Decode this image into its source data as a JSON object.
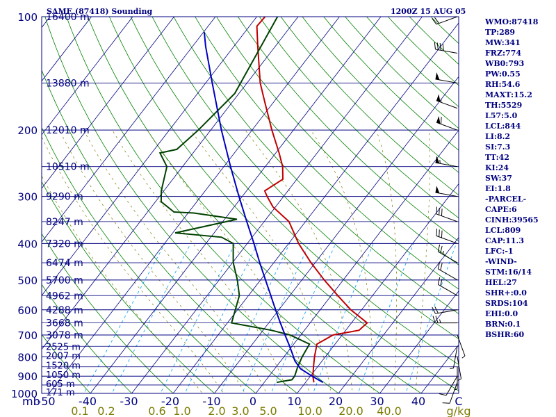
{
  "header": {
    "title": "SAME (87418) Sounding",
    "datetime": "1200Z 15 AUG 05"
  },
  "indices": [
    "WMO:87418",
    "TP:289",
    "MW:341",
    "FRZ:774",
    "WB0:793",
    "PW:0.55",
    "RH:54.6",
    "MAXT:15.2",
    "TH:5529",
    "L57:5.0",
    "LCL:844",
    "LI:8.2",
    "SI:7.3",
    "TT:42",
    "KI:24",
    "SW:37",
    "EI:1.8",
    "-PARCEL-",
    "CAPE:6",
    "CINH:39565",
    "LCL:809",
    "CAP:11.3",
    "LFC:-1",
    "-WIND-",
    "STM:16/14",
    "HEL:27",
    "SHR+:0.0",
    "SRDS:104",
    "EHI:0.0",
    "BRN:0.1",
    "BSHR:60"
  ],
  "colors": {
    "text": "#000080",
    "isobar": "#000080",
    "isotherm": "#000080",
    "dry_adiabat": "#008000",
    "moist_adiabat": "#7a7a00",
    "mixing_ratio": "#00a0ff",
    "temperature": "#c00000",
    "dewpoint": "#004000",
    "parcel": "#0000c0",
    "wind": "#000000"
  },
  "chart_data": {
    "type": "skew-t log-p",
    "title": "SAME (87418) Sounding",
    "xlabel": "C",
    "ylabel": "mb",
    "x_unit": "C",
    "y_unit": "mb",
    "xlim": [
      -50,
      50
    ],
    "ylim": [
      1000,
      100
    ],
    "pressure_ticks": [
      100,
      200,
      300,
      400,
      500,
      600,
      700,
      800,
      900,
      1000
    ],
    "temperature_ticks": [
      -50,
      -40,
      -30,
      -20,
      -10,
      0,
      10,
      20,
      30,
      40
    ],
    "height_labels": [
      {
        "p": 100,
        "text": "16400 m"
      },
      {
        "p": 150,
        "text": "13880 m"
      },
      {
        "p": 200,
        "text": "12010 m"
      },
      {
        "p": 250,
        "text": "10510 m"
      },
      {
        "p": 300,
        "text": "9290 m"
      },
      {
        "p": 350,
        "text": "8247 m"
      },
      {
        "p": 400,
        "text": "7320 m"
      },
      {
        "p": 450,
        "text": "6474 m"
      },
      {
        "p": 500,
        "text": "5700 m"
      },
      {
        "p": 550,
        "text": "4962 m"
      },
      {
        "p": 600,
        "text": "4288 m"
      },
      {
        "p": 650,
        "text": "3668 m"
      },
      {
        "p": 700,
        "text": "3078 m"
      },
      {
        "p": 750,
        "text": "2525 m"
      },
      {
        "p": 800,
        "text": "2007 m"
      },
      {
        "p": 850,
        "text": "1520 m"
      },
      {
        "p": 900,
        "text": "1050 m"
      },
      {
        "p": 950,
        "text": "605 m"
      },
      {
        "p": 1000,
        "text": "171 m"
      }
    ],
    "mixing_ratio_labels": [
      "0.1",
      "0.2",
      "0.6",
      "1.0",
      "2.0",
      "3.0",
      "5.0",
      "10.0",
      "20.0",
      "40.0",
      "g/kg"
    ],
    "series": [
      {
        "name": "temperature",
        "points": [
          {
            "p": 935,
            "t": 12.0
          },
          {
            "p": 900,
            "t": 10.6
          },
          {
            "p": 850,
            "t": 9.0
          },
          {
            "p": 800,
            "t": 7.4
          },
          {
            "p": 740,
            "t": 5.6
          },
          {
            "p": 700,
            "t": 7.8
          },
          {
            "p": 680,
            "t": 13.2
          },
          {
            "p": 650,
            "t": 13.8
          },
          {
            "p": 600,
            "t": 7.4
          },
          {
            "p": 550,
            "t": 1.6
          },
          {
            "p": 500,
            "t": -4.6
          },
          {
            "p": 450,
            "t": -11.0
          },
          {
            "p": 400,
            "t": -17.6
          },
          {
            "p": 350,
            "t": -24.0
          },
          {
            "p": 320,
            "t": -30.6
          },
          {
            "p": 300,
            "t": -34.0
          },
          {
            "p": 290,
            "t": -35.6
          },
          {
            "p": 270,
            "t": -33.4
          },
          {
            "p": 250,
            "t": -35.8
          },
          {
            "p": 230,
            "t": -39.2
          },
          {
            "p": 200,
            "t": -45.2
          },
          {
            "p": 170,
            "t": -51.8
          },
          {
            "p": 150,
            "t": -56.8
          },
          {
            "p": 120,
            "t": -64.2
          },
          {
            "p": 106,
            "t": -68.2
          },
          {
            "p": 100,
            "t": -68.0
          }
        ]
      },
      {
        "name": "dewpoint",
        "points": [
          {
            "p": 935,
            "t": 3.0
          },
          {
            "p": 920,
            "t": 6.2
          },
          {
            "p": 900,
            "t": 6.2
          },
          {
            "p": 850,
            "t": 5.2
          },
          {
            "p": 800,
            "t": 4.4
          },
          {
            "p": 740,
            "t": 3.8
          },
          {
            "p": 700,
            "t": -2.6
          },
          {
            "p": 680,
            "t": -8.0
          },
          {
            "p": 650,
            "t": -19.0
          },
          {
            "p": 550,
            "t": -22.2
          },
          {
            "p": 500,
            "t": -25.6
          },
          {
            "p": 450,
            "t": -29.8
          },
          {
            "p": 400,
            "t": -33.4
          },
          {
            "p": 385,
            "t": -37.4
          },
          {
            "p": 375,
            "t": -49.4
          },
          {
            "p": 345,
            "t": -37.0
          },
          {
            "p": 332,
            "t": -48.6
          },
          {
            "p": 330,
            "t": -53.6
          },
          {
            "p": 310,
            "t": -58.6
          },
          {
            "p": 290,
            "t": -60.6
          },
          {
            "p": 250,
            "t": -63.8
          },
          {
            "p": 230,
            "t": -68.0
          },
          {
            "p": 225,
            "t": -64.6
          },
          {
            "p": 200,
            "t": -63.0
          },
          {
            "p": 160,
            "t": -61.0
          },
          {
            "p": 100,
            "t": -65.0
          }
        ]
      },
      {
        "name": "parcel",
        "points": [
          {
            "p": 935,
            "t": 14.2
          },
          {
            "p": 900,
            "t": 10.4
          },
          {
            "p": 860,
            "t": 6.2
          },
          {
            "p": 820,
            "t": 3.4
          },
          {
            "p": 780,
            "t": 1.2
          },
          {
            "p": 740,
            "t": -1.2
          },
          {
            "p": 700,
            "t": -3.8
          },
          {
            "p": 650,
            "t": -7.2
          },
          {
            "p": 600,
            "t": -10.8
          },
          {
            "p": 550,
            "t": -14.6
          },
          {
            "p": 500,
            "t": -18.8
          },
          {
            "p": 450,
            "t": -23.4
          },
          {
            "p": 400,
            "t": -28.4
          },
          {
            "p": 350,
            "t": -34.2
          },
          {
            "p": 300,
            "t": -40.8
          },
          {
            "p": 250,
            "t": -48.4
          },
          {
            "p": 200,
            "t": -57.4
          },
          {
            "p": 150,
            "t": -68.4
          },
          {
            "p": 120,
            "t": -76.8
          },
          {
            "p": 110,
            "t": -79.8
          }
        ]
      }
    ],
    "wind_barbs": [
      {
        "p": 935,
        "dir": 200,
        "spd": 10
      },
      {
        "p": 900,
        "dir": 210,
        "spd": 10
      },
      {
        "p": 850,
        "dir": 180,
        "spd": 5
      },
      {
        "p": 800,
        "dir": 170,
        "spd": 5
      },
      {
        "p": 750,
        "dir": 190,
        "spd": 5
      },
      {
        "p": 700,
        "dir": 160,
        "spd": 5
      },
      {
        "p": 650,
        "dir": 270,
        "spd": 25
      },
      {
        "p": 600,
        "dir": 260,
        "spd": 20
      },
      {
        "p": 550,
        "dir": 300,
        "spd": 20
      },
      {
        "p": 500,
        "dir": 300,
        "spd": 20
      },
      {
        "p": 450,
        "dir": 300,
        "spd": 25
      },
      {
        "p": 400,
        "dir": 290,
        "spd": 30
      },
      {
        "p": 350,
        "dir": 290,
        "spd": 30
      },
      {
        "p": 300,
        "dir": 280,
        "spd": 50
      },
      {
        "p": 250,
        "dir": 280,
        "spd": 55
      },
      {
        "p": 200,
        "dir": 290,
        "spd": 60
      },
      {
        "p": 175,
        "dir": 290,
        "spd": 55
      },
      {
        "p": 150,
        "dir": 280,
        "spd": 50
      },
      {
        "p": 125,
        "dir": 280,
        "spd": 40
      },
      {
        "p": 100,
        "dir": 250,
        "spd": 20
      }
    ]
  }
}
